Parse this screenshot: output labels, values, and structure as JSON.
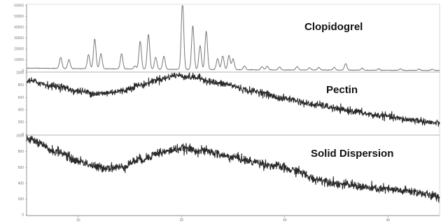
{
  "chart_data": {
    "type": "line",
    "title": "",
    "xlabel": "",
    "ylabel": "",
    "xlim": [
      5,
      45
    ],
    "grid": false,
    "x_ticks": [
      "10",
      "20",
      "30",
      "40"
    ],
    "panels": [
      {
        "name": "Clopidogrel",
        "ylim": [
          0,
          60000
        ],
        "y_ticks": [
          "0",
          "10000",
          "20000",
          "30000",
          "40000",
          "50000",
          "60000"
        ],
        "baseline": [
          [
            5,
            2300
          ],
          [
            12,
            1800
          ],
          [
            20,
            1200
          ],
          [
            30,
            700
          ],
          [
            45,
            200
          ]
        ],
        "peaks": [
          {
            "x": 8.3,
            "h": 10200
          },
          {
            "x": 9.1,
            "h": 8200
          },
          {
            "x": 11.0,
            "h": 13000
          },
          {
            "x": 11.6,
            "h": 27500
          },
          {
            "x": 12.2,
            "h": 14000
          },
          {
            "x": 14.2,
            "h": 14000
          },
          {
            "x": 15.5,
            "h": 2800
          },
          {
            "x": 16.0,
            "h": 25500
          },
          {
            "x": 16.8,
            "h": 32000
          },
          {
            "x": 17.5,
            "h": 11000
          },
          {
            "x": 18.3,
            "h": 12000
          },
          {
            "x": 20.1,
            "h": 62000
          },
          {
            "x": 21.1,
            "h": 40000
          },
          {
            "x": 21.8,
            "h": 22000
          },
          {
            "x": 22.4,
            "h": 35000
          },
          {
            "x": 23.5,
            "h": 10000
          },
          {
            "x": 24.0,
            "h": 12500
          },
          {
            "x": 24.6,
            "h": 13000
          },
          {
            "x": 25.0,
            "h": 10000
          },
          {
            "x": 26.1,
            "h": 3500
          },
          {
            "x": 27.8,
            "h": 3000
          },
          {
            "x": 28.3,
            "h": 3400
          },
          {
            "x": 29.5,
            "h": 2600
          },
          {
            "x": 31.2,
            "h": 3000
          },
          {
            "x": 32.4,
            "h": 2200
          },
          {
            "x": 33.3,
            "h": 2300
          },
          {
            "x": 34.8,
            "h": 2400
          },
          {
            "x": 35.9,
            "h": 6000
          },
          {
            "x": 37.5,
            "h": 1800
          },
          {
            "x": 39.1,
            "h": 1400
          },
          {
            "x": 41.2,
            "h": 1400
          },
          {
            "x": 43.0,
            "h": 1200
          },
          {
            "x": 44.3,
            "h": 1100
          }
        ]
      },
      {
        "name": "Pectin",
        "ylim": [
          0,
          1000
        ],
        "y_ticks": [
          "0",
          "200",
          "400",
          "600",
          "800",
          "1000"
        ],
        "profile": [
          [
            5,
            870
          ],
          [
            8,
            780
          ],
          [
            10,
            700
          ],
          [
            12,
            660
          ],
          [
            14,
            700
          ],
          [
            16,
            800
          ],
          [
            18,
            900
          ],
          [
            19.5,
            960
          ],
          [
            21,
            930
          ],
          [
            24,
            820
          ],
          [
            27,
            700
          ],
          [
            30,
            580
          ],
          [
            33,
            480
          ],
          [
            36,
            390
          ],
          [
            39,
            310
          ],
          [
            42,
            240
          ],
          [
            45,
            180
          ]
        ]
      },
      {
        "name": "Solid Dispersion",
        "ylim": [
          0,
          1000
        ],
        "y_ticks": [
          "0",
          "200",
          "400",
          "600",
          "800",
          "1000"
        ],
        "profile": [
          [
            5,
            960
          ],
          [
            8,
            800
          ],
          [
            10,
            680
          ],
          [
            12,
            600
          ],
          [
            14,
            600
          ],
          [
            16,
            700
          ],
          [
            18,
            790
          ],
          [
            20,
            840
          ],
          [
            22,
            810
          ],
          [
            25,
            730
          ],
          [
            27,
            670
          ],
          [
            29,
            620
          ],
          [
            31,
            560
          ],
          [
            33,
            450
          ],
          [
            36,
            380
          ],
          [
            39,
            330
          ],
          [
            42,
            300
          ],
          [
            45,
            230
          ]
        ]
      }
    ]
  }
}
